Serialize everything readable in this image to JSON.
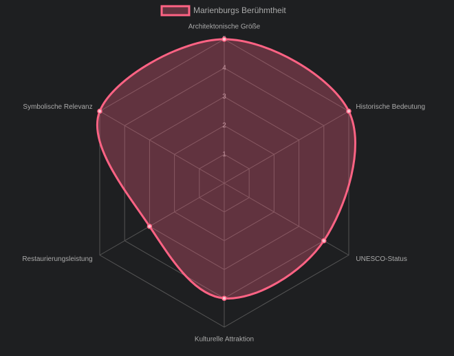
{
  "chart_data": {
    "type": "radar",
    "categories": [
      "Architektonische Größe",
      "Historische Bedeutung",
      "UNESCO-Status",
      "Kulturelle Attraktion",
      "Restaurierungsleistung",
      "Symbolische Relevanz"
    ],
    "series": [
      {
        "name": "Marienburgs Berühmtheit",
        "color": "#ff6384",
        "values": [
          5,
          5,
          4,
          4,
          3,
          5
        ]
      }
    ],
    "ylim": [
      0,
      5
    ],
    "yticks": [
      1,
      2,
      3,
      4,
      5
    ],
    "grid": true,
    "legend": "top"
  }
}
